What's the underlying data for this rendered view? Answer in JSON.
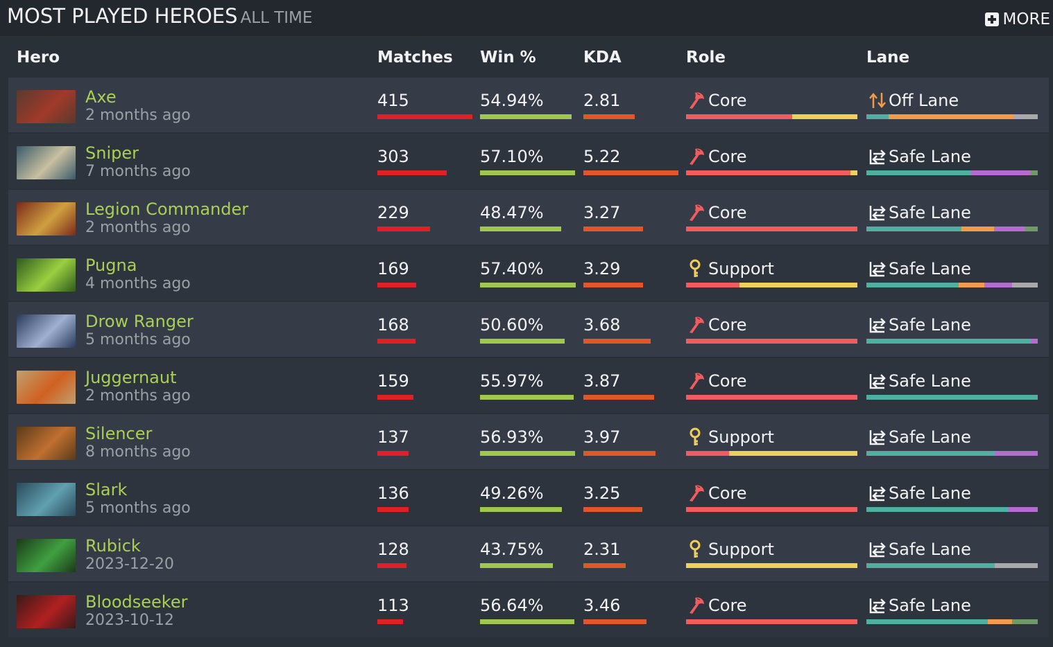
{
  "header": {
    "title": "MOST PLAYED HEROES",
    "subtitle": "ALL TIME",
    "more_label": "MORE"
  },
  "columns": {
    "hero": "Hero",
    "matches": "Matches",
    "win": "Win %",
    "kda": "KDA",
    "role": "Role",
    "lane": "Lane"
  },
  "colors": {
    "hero_name": "#a9cf54",
    "matches_bar": "#e01f27",
    "win_bar": "#a0c84e",
    "kda_bar": "#e2572a",
    "role_core": "#f25c5e",
    "role_support": "#f0cf5c",
    "lane_safe": "#4fb0a2",
    "lane_off": "#f39b4a",
    "lane_mid": "#b56cd0",
    "lane_jungle": "#6f9966",
    "lane_roam": "#a9a9a9"
  },
  "scale": {
    "matches_max": 415,
    "win_max": 57.4,
    "kda_max": 5.22
  },
  "rows": [
    {
      "name": "Axe",
      "time": "2 months ago",
      "matches": "415",
      "win": "54.94%",
      "kda": "2.81",
      "role": "Core",
      "role_icon": "core-icon",
      "lane": "Off Lane",
      "lane_icon": "off-lane-icon",
      "hero_icon": "axe-portrait",
      "role_split": {
        "core": 0.62,
        "support": 0.38
      },
      "lane_split": [
        {
          "lane": "safe",
          "share": 0.13
        },
        {
          "lane": "off",
          "share": 0.73
        },
        {
          "lane": "roam",
          "share": 0.14
        }
      ]
    },
    {
      "name": "Sniper",
      "time": "7 months ago",
      "matches": "303",
      "win": "57.10%",
      "kda": "5.22",
      "role": "Core",
      "role_icon": "core-icon",
      "lane": "Safe Lane",
      "lane_icon": "safe-lane-icon",
      "hero_icon": "sniper-portrait",
      "role_split": {
        "core": 0.96,
        "support": 0.04
      },
      "lane_split": [
        {
          "lane": "safe",
          "share": 0.61
        },
        {
          "lane": "mid",
          "share": 0.35
        },
        {
          "lane": "jungle",
          "share": 0.04
        }
      ]
    },
    {
      "name": "Legion Commander",
      "time": "2 months ago",
      "matches": "229",
      "win": "48.47%",
      "kda": "3.27",
      "role": "Core",
      "role_icon": "core-icon",
      "lane": "Safe Lane",
      "lane_icon": "safe-lane-icon",
      "hero_icon": "legion-commander-portrait",
      "role_split": {
        "core": 1.0,
        "support": 0.0
      },
      "lane_split": [
        {
          "lane": "safe",
          "share": 0.61
        },
        {
          "lane": "off",
          "share": 0.21
        },
        {
          "lane": "mid",
          "share": 0.2
        },
        {
          "lane": "jungle",
          "share": 0.08
        }
      ]
    },
    {
      "name": "Pugna",
      "time": "4 months ago",
      "matches": "169",
      "win": "57.40%",
      "kda": "3.29",
      "role": "Support",
      "role_icon": "support-icon",
      "lane": "Safe Lane",
      "lane_icon": "safe-lane-icon",
      "hero_icon": "pugna-portrait",
      "role_split": {
        "core": 0.31,
        "support": 0.69
      },
      "lane_split": [
        {
          "lane": "safe",
          "share": 0.54
        },
        {
          "lane": "off",
          "share": 0.15
        },
        {
          "lane": "mid",
          "share": 0.16
        },
        {
          "lane": "roam",
          "share": 0.15
        }
      ]
    },
    {
      "name": "Drow Ranger",
      "time": "5 months ago",
      "matches": "168",
      "win": "50.60%",
      "kda": "3.68",
      "role": "Core",
      "role_icon": "core-icon",
      "lane": "Safe Lane",
      "lane_icon": "safe-lane-icon",
      "hero_icon": "drow-ranger-portrait",
      "role_split": {
        "core": 1.0,
        "support": 0.0
      },
      "lane_split": [
        {
          "lane": "safe",
          "share": 0.96
        },
        {
          "lane": "mid",
          "share": 0.04
        }
      ]
    },
    {
      "name": "Juggernaut",
      "time": "2 months ago",
      "matches": "159",
      "win": "55.97%",
      "kda": "3.87",
      "role": "Core",
      "role_icon": "core-icon",
      "lane": "Safe Lane",
      "lane_icon": "safe-lane-icon",
      "hero_icon": "juggernaut-portrait",
      "role_split": {
        "core": 1.0,
        "support": 0.0
      },
      "lane_split": [
        {
          "lane": "safe",
          "share": 1.0
        }
      ]
    },
    {
      "name": "Silencer",
      "time": "8 months ago",
      "matches": "137",
      "win": "56.93%",
      "kda": "3.97",
      "role": "Support",
      "role_icon": "support-icon",
      "lane": "Safe Lane",
      "lane_icon": "safe-lane-icon",
      "hero_icon": "silencer-portrait",
      "role_split": {
        "core": 0.25,
        "support": 0.75
      },
      "lane_split": [
        {
          "lane": "safe",
          "share": 0.75
        },
        {
          "lane": "mid",
          "share": 0.25
        }
      ]
    },
    {
      "name": "Slark",
      "time": "5 months ago",
      "matches": "136",
      "win": "49.26%",
      "kda": "3.25",
      "role": "Core",
      "role_icon": "core-icon",
      "lane": "Safe Lane",
      "lane_icon": "safe-lane-icon",
      "hero_icon": "slark-portrait",
      "role_split": {
        "core": 1.0,
        "support": 0.0
      },
      "lane_split": [
        {
          "lane": "safe",
          "share": 0.83
        },
        {
          "lane": "mid",
          "share": 0.17
        }
      ]
    },
    {
      "name": "Rubick",
      "time": "2023-12-20",
      "matches": "128",
      "win": "43.75%",
      "kda": "2.31",
      "role": "Support",
      "role_icon": "support-icon",
      "lane": "Safe Lane",
      "lane_icon": "safe-lane-icon",
      "hero_icon": "rubick-portrait",
      "role_split": {
        "core": 0.0,
        "support": 1.0
      },
      "lane_split": [
        {
          "lane": "safe",
          "share": 0.75
        },
        {
          "lane": "roam",
          "share": 0.25
        }
      ]
    },
    {
      "name": "Bloodseeker",
      "time": "2023-10-12",
      "matches": "113",
      "win": "56.64%",
      "kda": "3.46",
      "role": "Core",
      "role_icon": "core-icon",
      "lane": "Safe Lane",
      "lane_icon": "safe-lane-icon",
      "hero_icon": "bloodseeker-portrait",
      "role_split": {
        "core": 1.0,
        "support": 0.0
      },
      "lane_split": [
        {
          "lane": "safe",
          "share": 0.71
        },
        {
          "lane": "off",
          "share": 0.14
        },
        {
          "lane": "jungle",
          "share": 0.15
        }
      ]
    }
  ]
}
